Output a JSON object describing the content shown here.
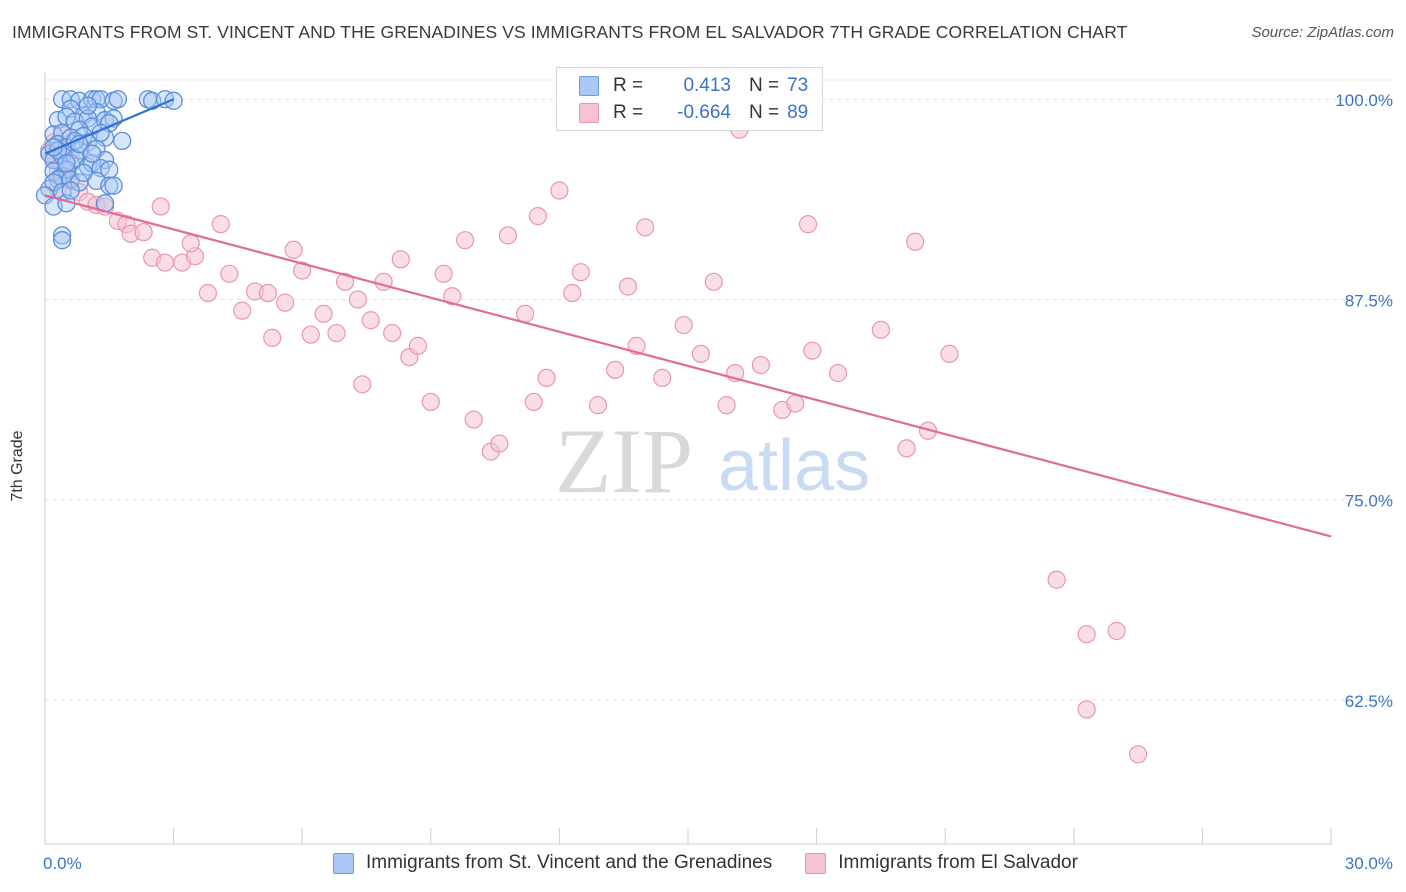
{
  "title": "IMMIGRANTS FROM ST. VINCENT AND THE GRENADINES VS IMMIGRANTS FROM EL SALVADOR 7TH GRADE CORRELATION CHART",
  "source": "Source: ZipAtlas.com",
  "watermark": {
    "zip": "ZIP",
    "atlas": "atlas"
  },
  "legend": {
    "r_label": "R =",
    "n_label": "N =",
    "blue": {
      "r": "0.413",
      "n": "73"
    },
    "pink": {
      "r": "-0.664",
      "n": "89"
    }
  },
  "colors": {
    "blue": "#6b9be0",
    "blue_line": "#2e72d2",
    "pink": "#eb96b1",
    "pink_line": "#e06b96",
    "tick_text": "#3a73c9"
  },
  "chart_data": {
    "type": "scatter",
    "title": "IMMIGRANTS FROM ST. VINCENT AND THE GRENADINES VS IMMIGRANTS FROM EL SALVADOR 7TH GRADE CORRELATION CHART",
    "xlabel": "",
    "ylabel": "7th Grade",
    "xlim": [
      0,
      30
    ],
    "ylim": [
      53.5,
      101.2
    ],
    "x_ticks": [
      "0.0%",
      "30.0%"
    ],
    "y_ticks": [
      {
        "value": 100.0,
        "label": "100.0%"
      },
      {
        "value": 87.5,
        "label": "87.5%"
      },
      {
        "value": 75.0,
        "label": "75.0%"
      },
      {
        "value": 62.5,
        "label": "62.5%"
      }
    ],
    "grid": true,
    "legend_position": "top-center",
    "series": [
      {
        "name": "Immigrants from St. Vincent and the Grenadines",
        "color": "#6b9be0",
        "trend": {
          "x": [
            0.0,
            3.0
          ],
          "y": [
            96.6,
            100.0
          ]
        },
        "points": [
          [
            0.4,
            100.0
          ],
          [
            0.6,
            100.0
          ],
          [
            0.8,
            99.9
          ],
          [
            1.1,
            100.0
          ],
          [
            1.2,
            100.0
          ],
          [
            1.3,
            100.0
          ],
          [
            1.6,
            99.9
          ],
          [
            1.7,
            100.0
          ],
          [
            2.4,
            100.0
          ],
          [
            2.5,
            99.9
          ],
          [
            2.8,
            100.0
          ],
          [
            3.0,
            99.9
          ],
          [
            0.6,
            99.4
          ],
          [
            0.9,
            99.0
          ],
          [
            1.2,
            99.2
          ],
          [
            0.3,
            98.7
          ],
          [
            0.5,
            98.9
          ],
          [
            0.7,
            98.6
          ],
          [
            1.0,
            98.8
          ],
          [
            1.1,
            98.3
          ],
          [
            1.4,
            98.7
          ],
          [
            1.6,
            98.8
          ],
          [
            0.8,
            98.1
          ],
          [
            1.5,
            98.5
          ],
          [
            0.2,
            97.8
          ],
          [
            0.4,
            97.9
          ],
          [
            0.6,
            97.6
          ],
          [
            0.9,
            97.7
          ],
          [
            1.0,
            97.3
          ],
          [
            1.4,
            97.6
          ],
          [
            1.8,
            97.4
          ],
          [
            0.3,
            97.2
          ],
          [
            0.5,
            97.0
          ],
          [
            0.8,
            96.8
          ],
          [
            1.2,
            96.9
          ],
          [
            1.4,
            96.2
          ],
          [
            0.1,
            96.6
          ],
          [
            0.2,
            96.2
          ],
          [
            0.4,
            96.5
          ],
          [
            0.6,
            96.0
          ],
          [
            0.7,
            96.3
          ],
          [
            1.0,
            95.8
          ],
          [
            1.1,
            96.0
          ],
          [
            1.3,
            95.7
          ],
          [
            1.5,
            95.6
          ],
          [
            0.2,
            95.5
          ],
          [
            0.4,
            95.2
          ],
          [
            0.5,
            95.6
          ],
          [
            0.3,
            95.0
          ],
          [
            0.6,
            95.0
          ],
          [
            0.8,
            94.8
          ],
          [
            1.2,
            94.9
          ],
          [
            1.5,
            94.6
          ],
          [
            1.6,
            94.6
          ],
          [
            0.1,
            94.4
          ],
          [
            0.2,
            94.8
          ],
          [
            0.4,
            94.2
          ],
          [
            0.0,
            94.0
          ],
          [
            0.2,
            93.3
          ],
          [
            0.5,
            93.5
          ],
          [
            1.4,
            93.5
          ],
          [
            0.4,
            91.5
          ],
          [
            0.4,
            91.2
          ],
          [
            0.7,
            97.4
          ],
          [
            0.9,
            95.4
          ],
          [
            1.3,
            97.9
          ],
          [
            0.3,
            96.8
          ],
          [
            0.6,
            94.3
          ],
          [
            0.2,
            97.0
          ],
          [
            1.0,
            99.6
          ],
          [
            0.5,
            96.0
          ],
          [
            0.8,
            97.2
          ],
          [
            1.1,
            96.6
          ]
        ]
      },
      {
        "name": "Immigrants from El Salvador",
        "color": "#eb96b1",
        "trend": {
          "x": [
            0.0,
            30.0
          ],
          "y": [
            94.0,
            72.7
          ]
        },
        "points": [
          [
            0.1,
            96.8
          ],
          [
            0.2,
            96.2
          ],
          [
            0.3,
            95.5
          ],
          [
            0.4,
            95.9
          ],
          [
            0.5,
            95.2
          ],
          [
            0.6,
            94.9
          ],
          [
            0.3,
            94.4
          ],
          [
            0.8,
            94.2
          ],
          [
            0.2,
            97.3
          ],
          [
            0.4,
            97.8
          ],
          [
            0.6,
            96.5
          ],
          [
            1.0,
            93.6
          ],
          [
            1.2,
            93.4
          ],
          [
            1.4,
            93.3
          ],
          [
            1.7,
            92.4
          ],
          [
            1.9,
            92.2
          ],
          [
            2.0,
            91.6
          ],
          [
            2.3,
            91.7
          ],
          [
            2.5,
            90.1
          ],
          [
            2.8,
            89.8
          ],
          [
            2.7,
            93.3
          ],
          [
            3.2,
            89.8
          ],
          [
            3.5,
            90.2
          ],
          [
            3.8,
            87.9
          ],
          [
            3.4,
            91.0
          ],
          [
            4.1,
            92.2
          ],
          [
            4.3,
            89.1
          ],
          [
            4.6,
            86.8
          ],
          [
            4.9,
            88.0
          ],
          [
            5.3,
            85.1
          ],
          [
            5.2,
            87.9
          ],
          [
            5.6,
            87.3
          ],
          [
            5.8,
            90.6
          ],
          [
            6.0,
            89.3
          ],
          [
            6.2,
            85.3
          ],
          [
            6.5,
            86.6
          ],
          [
            6.8,
            85.4
          ],
          [
            7.0,
            88.6
          ],
          [
            7.3,
            87.5
          ],
          [
            7.4,
            82.2
          ],
          [
            7.6,
            86.2
          ],
          [
            7.9,
            88.6
          ],
          [
            8.1,
            85.4
          ],
          [
            8.3,
            90.0
          ],
          [
            8.5,
            83.9
          ],
          [
            8.7,
            84.6
          ],
          [
            9.0,
            81.1
          ],
          [
            9.3,
            89.1
          ],
          [
            9.5,
            87.7
          ],
          [
            9.8,
            91.2
          ],
          [
            10.0,
            80.0
          ],
          [
            10.4,
            78.0
          ],
          [
            10.6,
            78.5
          ],
          [
            10.8,
            91.5
          ],
          [
            11.2,
            86.6
          ],
          [
            11.4,
            81.1
          ],
          [
            11.7,
            82.6
          ],
          [
            12.0,
            94.3
          ],
          [
            12.3,
            87.9
          ],
          [
            12.5,
            89.2
          ],
          [
            12.9,
            80.9
          ],
          [
            13.3,
            83.1
          ],
          [
            13.6,
            88.3
          ],
          [
            13.8,
            84.6
          ],
          [
            14.0,
            92.0
          ],
          [
            14.4,
            82.6
          ],
          [
            14.9,
            85.9
          ],
          [
            15.3,
            84.1
          ],
          [
            15.6,
            88.6
          ],
          [
            15.9,
            80.9
          ],
          [
            16.1,
            82.9
          ],
          [
            16.7,
            83.4
          ],
          [
            17.2,
            80.6
          ],
          [
            17.5,
            81.0
          ],
          [
            17.9,
            84.3
          ],
          [
            17.8,
            92.2
          ],
          [
            18.5,
            82.9
          ],
          [
            19.5,
            85.6
          ],
          [
            20.3,
            91.1
          ],
          [
            20.1,
            78.2
          ],
          [
            20.6,
            79.3
          ],
          [
            21.1,
            84.1
          ],
          [
            23.6,
            70.0
          ],
          [
            24.3,
            61.9
          ],
          [
            24.3,
            66.6
          ],
          [
            25.0,
            66.8
          ],
          [
            25.5,
            59.1
          ],
          [
            16.2,
            98.1
          ],
          [
            11.5,
            92.7
          ]
        ]
      }
    ]
  },
  "bottom_legend": [
    "Immigrants from St. Vincent and the Grenadines",
    "Immigrants from El Salvador"
  ]
}
